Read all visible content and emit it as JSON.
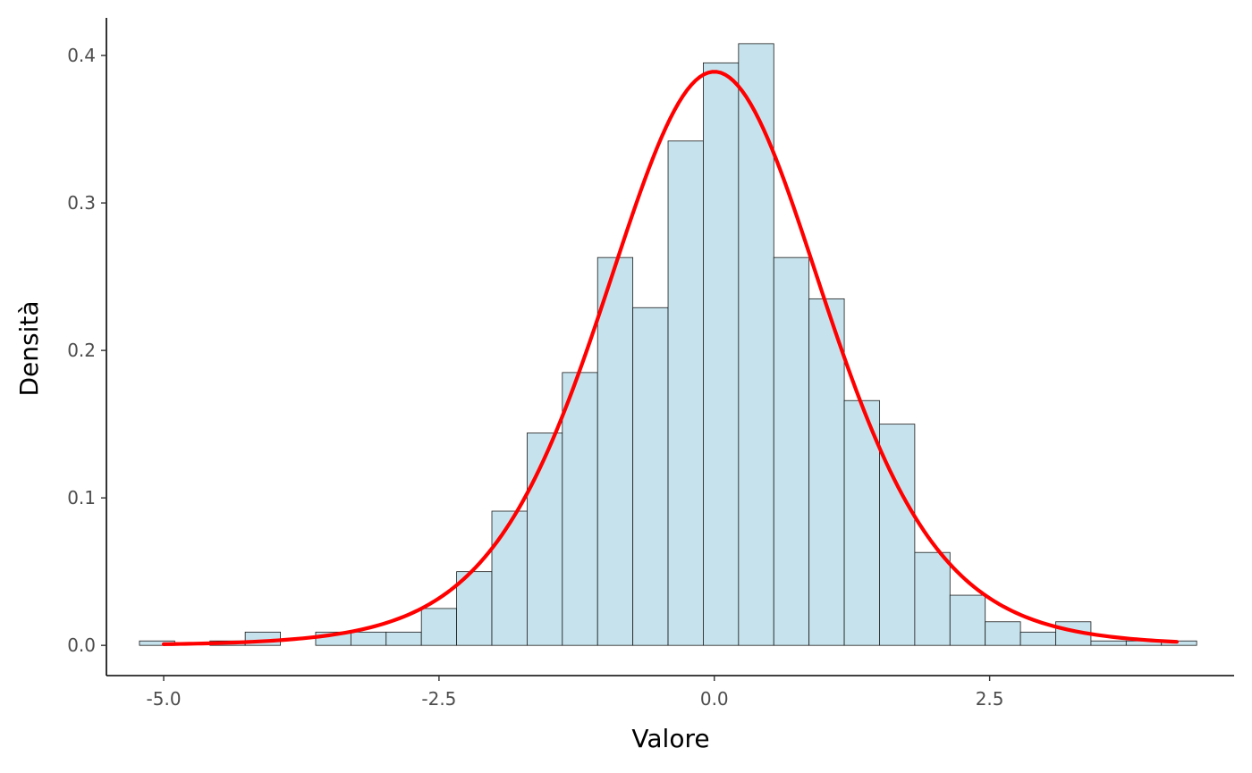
{
  "chart_data": {
    "type": "histogram",
    "title": "",
    "xlabel": "Valore",
    "ylabel": "Densità",
    "xlim": [
      -5.52,
      4.72
    ],
    "ylim": [
      -0.0205,
      0.4255
    ],
    "x_ticks": [
      -5.0,
      -2.5,
      0.0,
      2.5
    ],
    "x_tick_labels": [
      "-5.0",
      "-2.5",
      "0.0",
      "2.5"
    ],
    "y_ticks": [
      0.0,
      0.1,
      0.2,
      0.3,
      0.4
    ],
    "y_tick_labels": [
      "0.0",
      "0.1",
      "0.2",
      "0.3",
      "0.4"
    ],
    "grid": false,
    "bins": [
      {
        "x0": -5.22,
        "x1": -4.9,
        "density": 0.003
      },
      {
        "x0": -4.9,
        "x1": -4.58,
        "density": 0.0
      },
      {
        "x0": -4.58,
        "x1": -4.26,
        "density": 0.003
      },
      {
        "x0": -4.26,
        "x1": -3.94,
        "density": 0.009
      },
      {
        "x0": -3.94,
        "x1": -3.62,
        "density": 0.0
      },
      {
        "x0": -3.62,
        "x1": -3.3,
        "density": 0.009
      },
      {
        "x0": -3.3,
        "x1": -2.98,
        "density": 0.009
      },
      {
        "x0": -2.98,
        "x1": -2.66,
        "density": 0.009
      },
      {
        "x0": -2.66,
        "x1": -2.34,
        "density": 0.025
      },
      {
        "x0": -2.34,
        "x1": -2.02,
        "density": 0.05
      },
      {
        "x0": -2.02,
        "x1": -1.7,
        "density": 0.091
      },
      {
        "x0": -1.7,
        "x1": -1.38,
        "density": 0.144
      },
      {
        "x0": -1.38,
        "x1": -1.06,
        "density": 0.185
      },
      {
        "x0": -1.06,
        "x1": -0.74,
        "density": 0.263
      },
      {
        "x0": -0.74,
        "x1": -0.42,
        "density": 0.229
      },
      {
        "x0": -0.42,
        "x1": -0.1,
        "density": 0.342
      },
      {
        "x0": -0.1,
        "x1": 0.22,
        "density": 0.395
      },
      {
        "x0": 0.22,
        "x1": 0.54,
        "density": 0.408
      },
      {
        "x0": 0.54,
        "x1": 0.86,
        "density": 0.263
      },
      {
        "x0": 0.86,
        "x1": 1.18,
        "density": 0.235
      },
      {
        "x0": 1.18,
        "x1": 1.5,
        "density": 0.166
      },
      {
        "x0": 1.5,
        "x1": 1.82,
        "density": 0.15
      },
      {
        "x0": 1.82,
        "x1": 2.14,
        "density": 0.063
      },
      {
        "x0": 2.14,
        "x1": 2.46,
        "density": 0.034
      },
      {
        "x0": 2.46,
        "x1": 2.78,
        "density": 0.016
      },
      {
        "x0": 2.78,
        "x1": 3.1,
        "density": 0.009
      },
      {
        "x0": 3.1,
        "x1": 3.42,
        "density": 0.016
      },
      {
        "x0": 3.42,
        "x1": 3.74,
        "density": 0.003
      },
      {
        "x0": 3.74,
        "x1": 4.06,
        "density": 0.003
      },
      {
        "x0": 4.06,
        "x1": 4.38,
        "density": 0.003
      }
    ],
    "curve": {
      "type": "density",
      "x_range": [
        -5.0,
        4.2
      ],
      "peak": {
        "x": 0.0,
        "y": 0.389
      }
    },
    "colors": {
      "bar_fill": "#c6e3ed",
      "bar_stroke": "#1a1a1a",
      "curve": "#ff0000",
      "axis": "#000000",
      "tick_label": "#4d4d4d"
    }
  }
}
